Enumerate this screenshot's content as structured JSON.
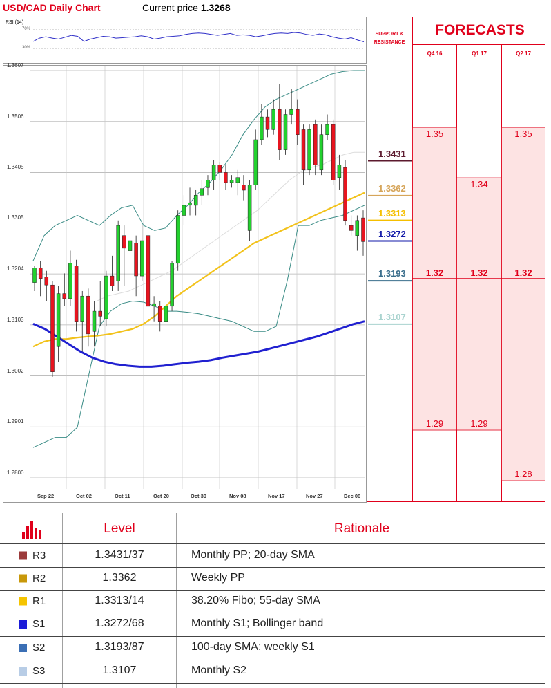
{
  "header": {
    "title": "USD/CAD Daily Chart",
    "current_price_label": "Current price",
    "current_price": "1.3268"
  },
  "rsi": {
    "label": "RSI (14)",
    "levels": [
      "70%",
      "30%"
    ],
    "values": [
      45,
      52,
      55,
      52,
      50,
      54,
      58,
      56,
      45,
      50,
      53,
      56,
      55,
      52,
      53,
      54,
      55,
      57,
      55,
      50,
      52,
      55,
      56,
      57,
      60,
      62,
      63,
      62,
      60,
      58,
      60,
      62,
      58,
      59,
      58,
      55,
      57,
      60,
      62,
      63,
      62,
      64,
      63,
      60,
      58,
      61,
      59,
      55,
      52,
      50,
      53,
      48,
      44
    ]
  },
  "chart_data": {
    "type": "candlestick",
    "title": "USD/CAD Daily Chart",
    "y_ticks": [
      "1.3607",
      "1.3506",
      "1.3405",
      "1.3305",
      "1.3204",
      "1.3103",
      "1.3002",
      "1.2901",
      "1.2800"
    ],
    "ylim": [
      1.2785,
      1.3615
    ],
    "x_ticks": [
      "Sep 22",
      "Oct 02",
      "Oct 11",
      "Oct 20",
      "Oct 30",
      "Nov 08",
      "Nov 17",
      "Nov 27",
      "Dec 06"
    ],
    "candles": [
      [
        1.3187,
        1.3216,
        1.317,
        1.322
      ],
      [
        1.3216,
        1.3195,
        1.316,
        1.323
      ],
      [
        1.3198,
        1.3182,
        1.315,
        1.321
      ],
      [
        1.3182,
        1.301,
        1.3,
        1.319
      ],
      [
        1.306,
        1.3165,
        1.303,
        1.318
      ],
      [
        1.3165,
        1.3155,
        1.314,
        1.3205
      ],
      [
        1.3155,
        1.3225,
        1.314,
        1.325
      ],
      [
        1.322,
        1.311,
        1.309,
        1.3232
      ],
      [
        1.311,
        1.316,
        1.305,
        1.317
      ],
      [
        1.316,
        1.3085,
        1.306,
        1.3175
      ],
      [
        1.309,
        1.313,
        1.306,
        1.315
      ],
      [
        1.313,
        1.312,
        1.31,
        1.319
      ],
      [
        1.3115,
        1.32,
        1.31,
        1.321
      ],
      [
        1.32,
        1.318,
        1.317,
        1.324
      ],
      [
        1.319,
        1.33,
        1.317,
        1.331
      ],
      [
        1.328,
        1.3255,
        1.318,
        1.33
      ],
      [
        1.325,
        1.327,
        1.322,
        1.33
      ],
      [
        1.3265,
        1.32,
        1.316,
        1.328
      ],
      [
        1.32,
        1.327,
        1.319,
        1.33
      ],
      [
        1.328,
        1.314,
        1.312,
        1.329
      ],
      [
        1.314,
        1.3145,
        1.311,
        1.316
      ],
      [
        1.314,
        1.311,
        1.309,
        1.315
      ],
      [
        1.311,
        1.314,
        1.307,
        1.315
      ],
      [
        1.314,
        1.3225,
        1.313,
        1.323
      ],
      [
        1.3225,
        1.332,
        1.321,
        1.333
      ],
      [
        1.332,
        1.334,
        1.33,
        1.336
      ],
      [
        1.334,
        1.3345,
        1.332,
        1.3375
      ],
      [
        1.334,
        1.336,
        1.332,
        1.337
      ],
      [
        1.336,
        1.3373,
        1.334,
        1.339
      ],
      [
        1.3375,
        1.339,
        1.336,
        1.34
      ],
      [
        1.339,
        1.342,
        1.337,
        1.343
      ],
      [
        1.342,
        1.3405,
        1.339,
        1.3425
      ],
      [
        1.3405,
        1.3385,
        1.337,
        1.342
      ],
      [
        1.3385,
        1.339,
        1.3375,
        1.34
      ],
      [
        1.3385,
        1.3395,
        1.336,
        1.341
      ],
      [
        1.338,
        1.337,
        1.335,
        1.34
      ],
      [
        1.329,
        1.338,
        1.327,
        1.339
      ],
      [
        1.338,
        1.347,
        1.337,
        1.349
      ],
      [
        1.347,
        1.3515,
        1.346,
        1.354
      ],
      [
        1.3515,
        1.349,
        1.3475,
        1.353
      ],
      [
        1.349,
        1.353,
        1.348,
        1.355
      ],
      [
        1.353,
        1.345,
        1.343,
        1.358
      ],
      [
        1.345,
        1.352,
        1.344,
        1.353
      ],
      [
        1.352,
        1.353,
        1.35,
        1.357
      ],
      [
        1.353,
        1.348,
        1.346,
        1.355
      ],
      [
        1.349,
        1.341,
        1.338,
        1.35
      ],
      [
        1.341,
        1.349,
        1.34,
        1.35
      ],
      [
        1.35,
        1.342,
        1.34,
        1.351
      ],
      [
        1.341,
        1.348,
        1.34,
        1.35
      ],
      [
        1.348,
        1.35,
        1.347,
        1.352
      ],
      [
        1.35,
        1.339,
        1.338,
        1.351
      ],
      [
        1.3395,
        1.342,
        1.337,
        1.344
      ],
      [
        1.3415,
        1.331,
        1.33,
        1.343
      ],
      [
        1.33,
        1.329,
        1.328,
        1.332
      ],
      [
        1.328,
        1.331,
        1.325,
        1.332
      ],
      [
        1.3315,
        1.3268,
        1.324,
        1.333
      ]
    ],
    "overlays": {
      "sma_yellow": [
        1.306,
        1.307,
        1.3075,
        1.3075,
        1.3078,
        1.308,
        1.3082,
        1.3085,
        1.309,
        1.3095,
        1.3105,
        1.312,
        1.314,
        1.316,
        1.3175,
        1.319,
        1.3205,
        1.322,
        1.3235,
        1.325,
        1.3265,
        1.3275,
        1.3285,
        1.3295,
        1.3305,
        1.3315,
        1.3325,
        1.3335,
        1.3345,
        1.3355,
        1.3365
      ],
      "sma_blue": [
        1.3105,
        1.3095,
        1.308,
        1.3065,
        1.305,
        1.3038,
        1.303,
        1.3025,
        1.3022,
        1.302,
        1.302,
        1.3022,
        1.3025,
        1.3028,
        1.303,
        1.3033,
        1.3038,
        1.3042,
        1.3046,
        1.305,
        1.3056,
        1.3062,
        1.3068,
        1.3074,
        1.308,
        1.3088,
        1.3096,
        1.3104,
        1.311
      ],
      "bb_upper": [
        1.323,
        1.328,
        1.33,
        1.331,
        1.332,
        1.331,
        1.33,
        1.332,
        1.3335,
        1.334,
        1.33,
        1.329,
        1.3295,
        1.332,
        1.334,
        1.3365,
        1.3385,
        1.341,
        1.344,
        1.348,
        1.351,
        1.3535,
        1.355,
        1.356,
        1.357,
        1.358,
        1.359,
        1.36,
        1.3605,
        1.3607,
        1.3607
      ],
      "bb_lower": [
        1.286,
        1.287,
        1.288,
        1.288,
        1.29,
        1.3,
        1.31,
        1.313,
        1.3145,
        1.315,
        1.3148,
        1.314,
        1.313,
        1.313,
        1.3128,
        1.3125,
        1.312,
        1.3115,
        1.311,
        1.31,
        1.309,
        1.309,
        1.31,
        1.319,
        1.33,
        1.33,
        1.331,
        1.3315,
        1.332,
        1.333,
        1.334
      ],
      "sma_grey": [
        1.315,
        1.316,
        1.3165,
        1.317,
        1.318,
        1.319,
        1.32,
        1.321,
        1.3225,
        1.324,
        1.3255,
        1.327,
        1.3285,
        1.33,
        1.3315,
        1.333,
        1.335,
        1.337,
        1.339,
        1.3405,
        1.3415,
        1.342,
        1.343,
        1.344,
        1.3445,
        1.3445
      ]
    }
  },
  "support_resistance": {
    "header": [
      "SUPPORT &",
      "RESISTANCE"
    ],
    "levels": [
      {
        "value": "1.3431",
        "color": "#5c1a2e"
      },
      {
        "value": "1.3362",
        "color": "#d6a55a"
      },
      {
        "value": "1.3313",
        "color": "#f5bf00"
      },
      {
        "value": "1.3272",
        "color": "#1219a8"
      },
      {
        "value": "1.3193",
        "color": "#3a6e8c"
      },
      {
        "value": "1.3107",
        "color": "#a9d3cf"
      }
    ]
  },
  "forecasts": {
    "title": "FORECASTS",
    "quarters": [
      "Q4 16",
      "Q1 17",
      "Q2 17"
    ],
    "high": [
      "1.35",
      "1.34",
      "1.35"
    ],
    "mid": [
      "1.32",
      "1.32",
      "1.32"
    ],
    "low": [
      "1.29",
      "1.29",
      "1.28"
    ]
  },
  "table": {
    "headers": [
      "Level",
      "Rationale"
    ],
    "rows": [
      {
        "label": "R3",
        "level": "1.3431/37",
        "rationale": "Monthly PP; 20-day SMA",
        "color": "#9b3a3a"
      },
      {
        "label": "R2",
        "level": "1.3362",
        "rationale": "Weekly PP",
        "color": "#c8980a"
      },
      {
        "label": "R1",
        "level": "1.3313/14",
        "rationale": "38.20% Fibo; 55-day SMA",
        "color": "#f5c400"
      },
      {
        "label": "S1",
        "level": "1.3272/68",
        "rationale": "Monthly S1; Bollinger band",
        "color": "#1c1cd8"
      },
      {
        "label": "S2",
        "level": "1.3193/87",
        "rationale": "100-day SMA; weekly S1",
        "color": "#3b6fb5"
      },
      {
        "label": "S3",
        "level": "1.3107",
        "rationale": "Monthly S2",
        "color": "#b8cde6"
      }
    ]
  }
}
